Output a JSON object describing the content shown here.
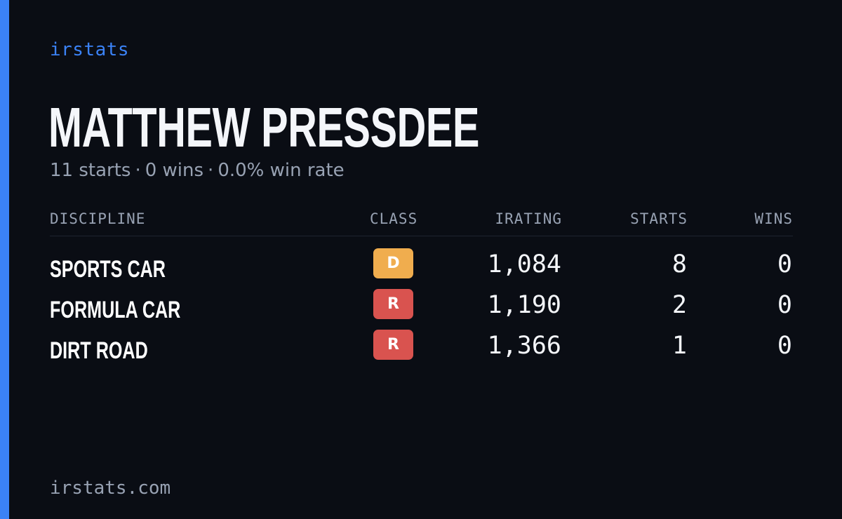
{
  "brand": "irstats",
  "driver": {
    "name": "MATTHEW PRESSDEE",
    "summary": {
      "starts": "11 starts",
      "wins": "0 wins",
      "win_rate": "0.0% win rate",
      "separator": "·"
    }
  },
  "table": {
    "headers": {
      "discipline": "DISCIPLINE",
      "class": "CLASS",
      "irating": "IRATING",
      "starts": "STARTS",
      "wins": "WINS"
    },
    "rows": [
      {
        "discipline": "SPORTS CAR",
        "class": "D",
        "class_color": "#f0ad4e",
        "irating": "1,084",
        "starts": "8",
        "wins": "0"
      },
      {
        "discipline": "FORMULA CAR",
        "class": "R",
        "class_color": "#d9534f",
        "irating": "1,190",
        "starts": "2",
        "wins": "0"
      },
      {
        "discipline": "DIRT ROAD",
        "class": "R",
        "class_color": "#d9534f",
        "irating": "1,366",
        "starts": "1",
        "wins": "0"
      }
    ]
  },
  "footer": "irstats.com",
  "colors": {
    "accent": "#3b82f6",
    "background": "#0a0d14",
    "muted_text": "#98a2b3"
  }
}
